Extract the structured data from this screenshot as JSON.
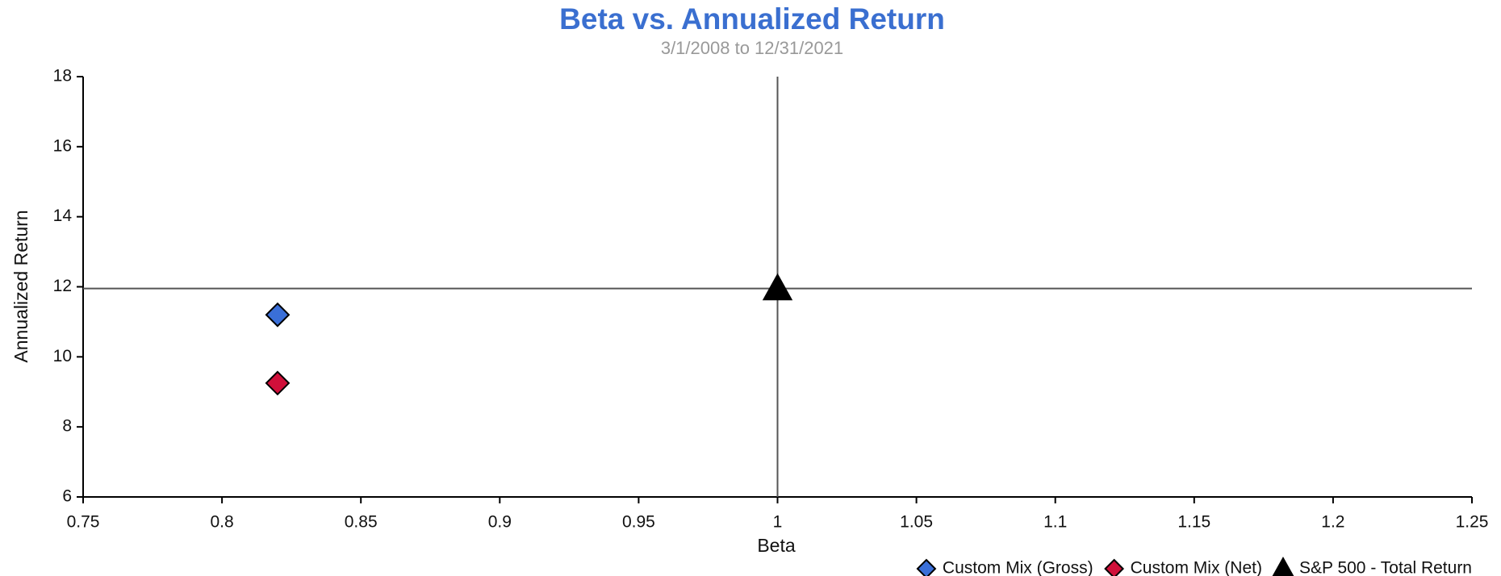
{
  "chart_data": {
    "type": "scatter",
    "title": "Beta vs. Annualized Return",
    "subtitle": "3/1/2008 to 12/31/2021",
    "x_label": "Beta",
    "y_label": "Annualized Return",
    "xlim": [
      0.75,
      1.25
    ],
    "xticks": [
      0.75,
      0.8,
      0.85,
      0.9,
      0.95,
      1,
      1.05,
      1.1,
      1.15,
      1.2,
      1.25
    ],
    "ylim": [
      6,
      18
    ],
    "yticks": [
      6,
      8,
      10,
      12,
      14,
      16,
      18
    ],
    "series": [
      {
        "name": "Custom Mix (Gross)",
        "color": "#3a6fd8",
        "marker": "diamond",
        "x": [
          0.82
        ],
        "values": [
          11.2
        ]
      },
      {
        "name": "Custom Mix (Net)",
        "color": "#d0103a",
        "marker": "diamond",
        "x": [
          0.82
        ],
        "values": [
          9.25
        ]
      },
      {
        "name": "S&P 500 - Total Return",
        "color": "#000000",
        "marker": "triangle",
        "x": [
          1
        ],
        "values": [
          11.95
        ]
      }
    ]
  }
}
